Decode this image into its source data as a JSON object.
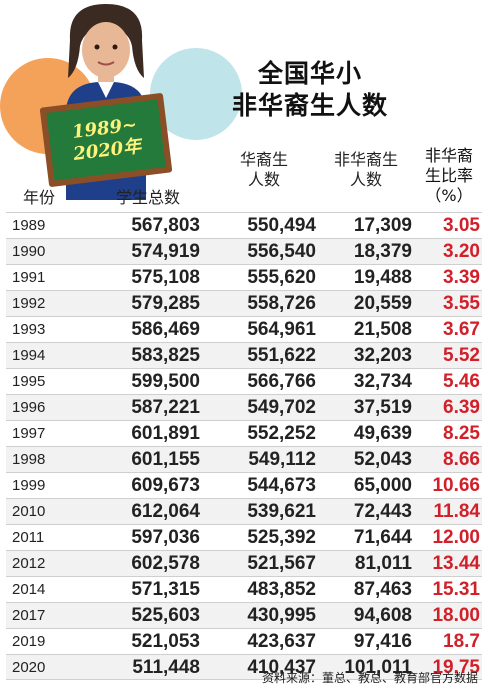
{
  "title": {
    "line1": "全国华小",
    "line2": "非华裔生人数"
  },
  "chalkboard": {
    "line1": "1989~",
    "line2": "2020年"
  },
  "headers": {
    "year": "年份",
    "total": "学生总数",
    "chinese_l1": "华裔生",
    "chinese_l2": "人数",
    "non_chinese_l1": "非华裔生",
    "non_chinese_l2": "人数",
    "pct_l1": "非华裔",
    "pct_l2": "生比率",
    "pct_l3": "（%）"
  },
  "source": "资料来源：董总、教总、教育部官方数据",
  "chart_data": {
    "type": "table",
    "title": "全国华小 非华裔生人数",
    "columns": [
      "年份",
      "学生总数",
      "华裔生人数",
      "非华裔生人数",
      "非华裔生比率（%）"
    ],
    "rows": [
      [
        "1989",
        "567,803",
        "550,494",
        "17,309",
        "3.05"
      ],
      [
        "1990",
        "574,919",
        "556,540",
        "18,379",
        "3.20"
      ],
      [
        "1991",
        "575,108",
        "555,620",
        "19,488",
        "3.39"
      ],
      [
        "1992",
        "579,285",
        "558,726",
        "20,559",
        "3.55"
      ],
      [
        "1993",
        "586,469",
        "564,961",
        "21,508",
        "3.67"
      ],
      [
        "1994",
        "583,825",
        "551,622",
        "32,203",
        "5.52"
      ],
      [
        "1995",
        "599,500",
        "566,766",
        "32,734",
        "5.46"
      ],
      [
        "1996",
        "587,221",
        "549,702",
        "37,519",
        "6.39"
      ],
      [
        "1997",
        "601,891",
        "552,252",
        "49,639",
        "8.25"
      ],
      [
        "1998",
        "601,155",
        "549,112",
        "52,043",
        "8.66"
      ],
      [
        "1999",
        "609,673",
        "544,673",
        "65,000",
        "10.66"
      ],
      [
        "2010",
        "612,064",
        "539,621",
        "72,443",
        "11.84"
      ],
      [
        "2011",
        "597,036",
        "525,392",
        "71,644",
        "12.00"
      ],
      [
        "2012",
        "602,578",
        "521,567",
        "81,011",
        "13.44"
      ],
      [
        "2014",
        "571,315",
        "483,852",
        "87,463",
        "15.31"
      ],
      [
        "2017",
        "525,603",
        "430,995",
        "94,608",
        "18.00"
      ],
      [
        "2019",
        "521,053",
        "423,637",
        "97,416",
        "18.7"
      ],
      [
        "2020",
        "511,448",
        "410,437",
        "101,011",
        "19.75"
      ]
    ]
  }
}
